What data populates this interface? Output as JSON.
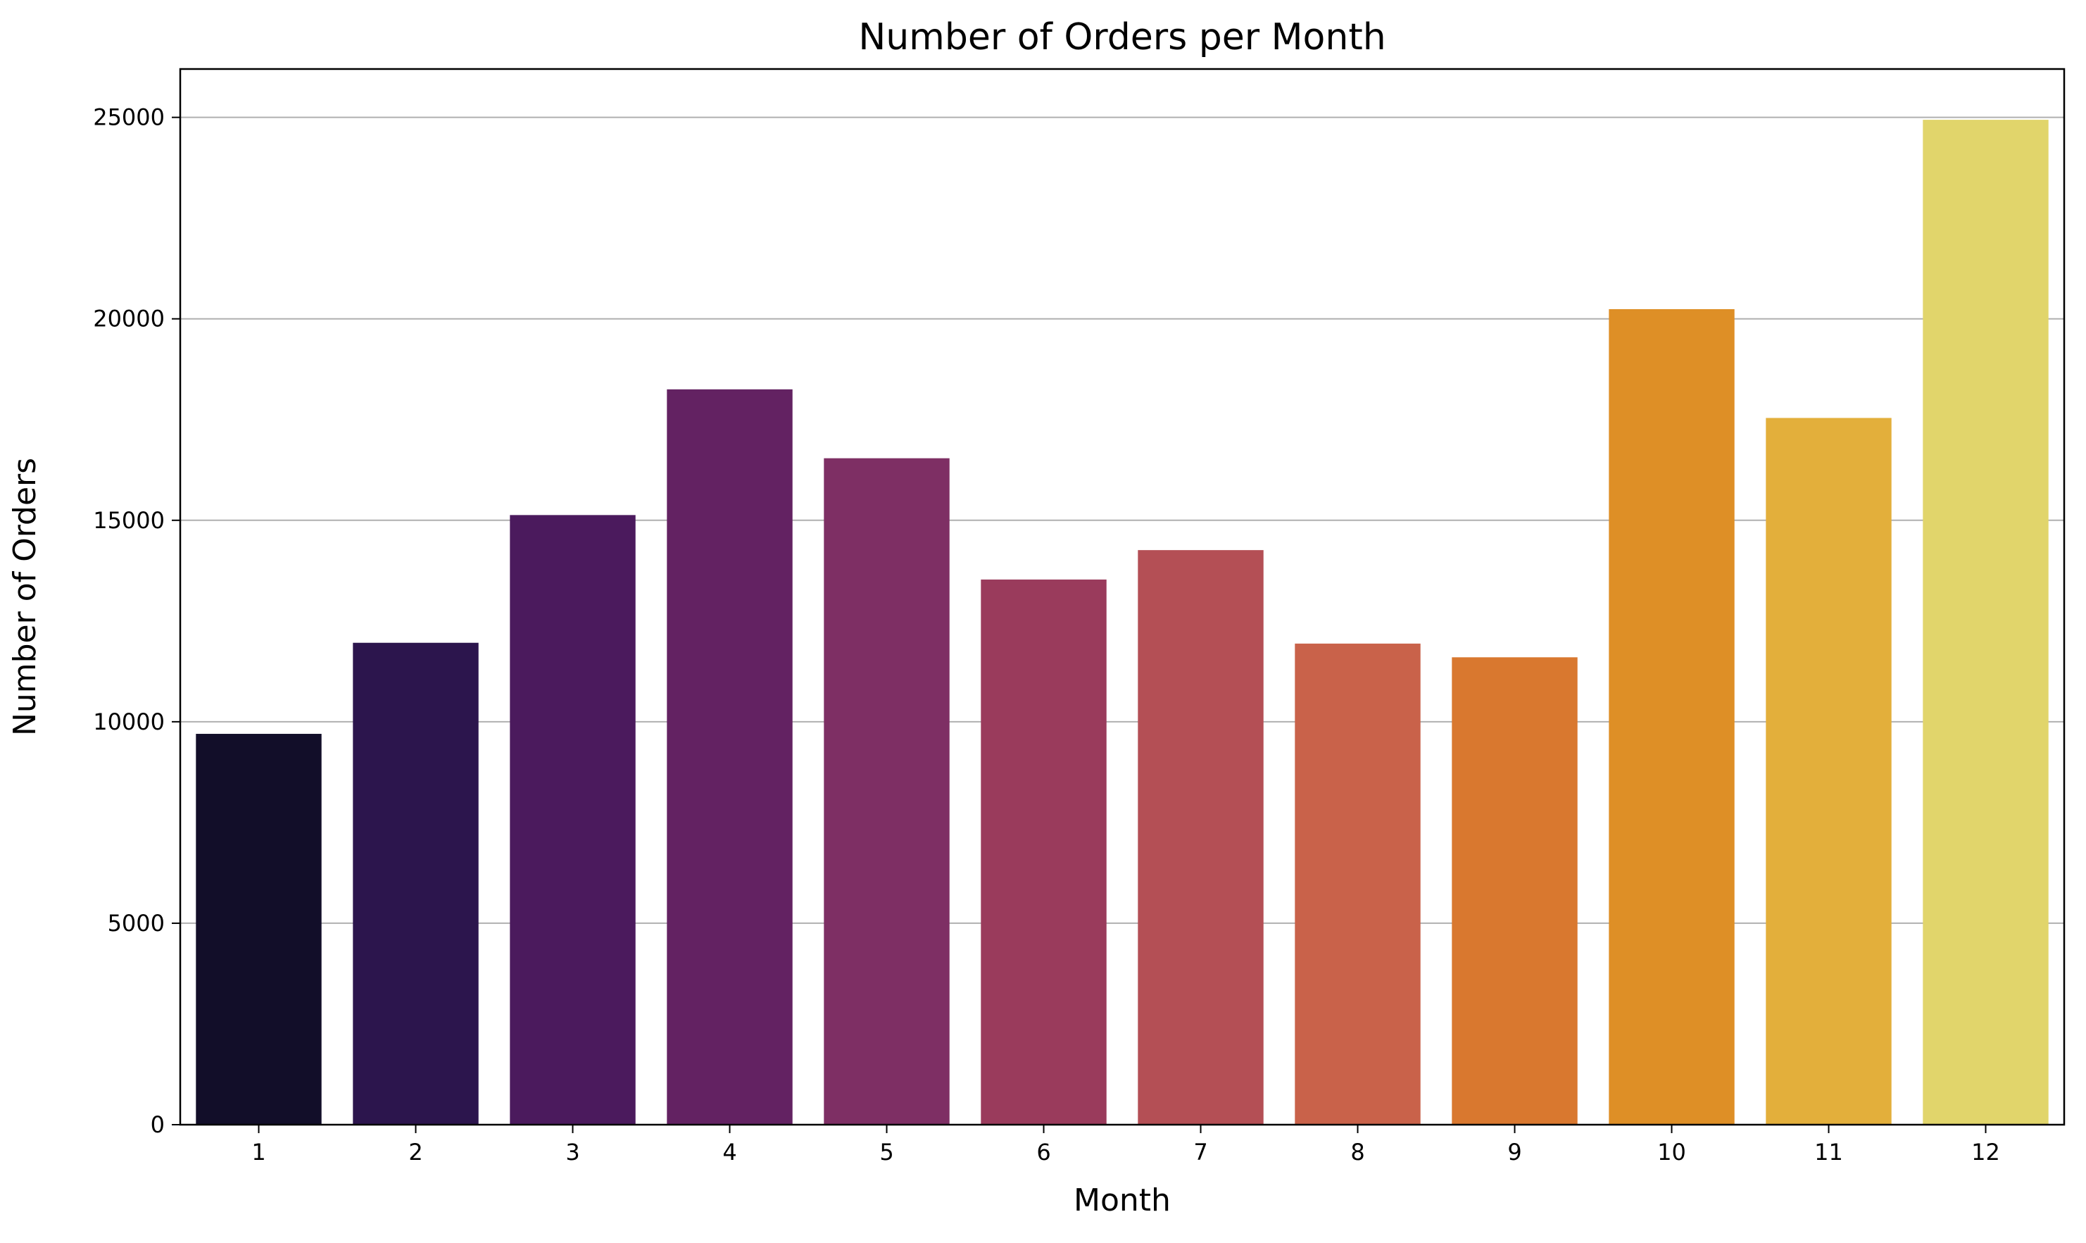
{
  "chart_data": {
    "type": "bar",
    "title": "Number of Orders per Month",
    "xlabel": "Month",
    "ylabel": "Number of Orders",
    "categories": [
      "1",
      "2",
      "3",
      "4",
      "5",
      "6",
      "7",
      "8",
      "9",
      "10",
      "11",
      "12"
    ],
    "values": [
      9700,
      11960,
      15130,
      18250,
      16540,
      13530,
      14260,
      11940,
      11600,
      20240,
      17540,
      24940
    ],
    "colors": [
      "#120e29",
      "#2c154d",
      "#4b1a5d",
      "#632262",
      "#7e2f64",
      "#9a3b5c",
      "#b44f55",
      "#c9624a",
      "#d9782f",
      "#de8f26",
      "#e3af3b",
      "#e1d56b"
    ],
    "ylim": [
      0,
      26200
    ],
    "yticks": [
      0,
      5000,
      10000,
      15000,
      20000,
      25000
    ],
    "ytick_labels": [
      "0",
      "5000",
      "10000",
      "15000",
      "20000",
      "25000"
    ],
    "grid": "y-major",
    "grid_color": "#b0b0b0",
    "legend": "none"
  }
}
